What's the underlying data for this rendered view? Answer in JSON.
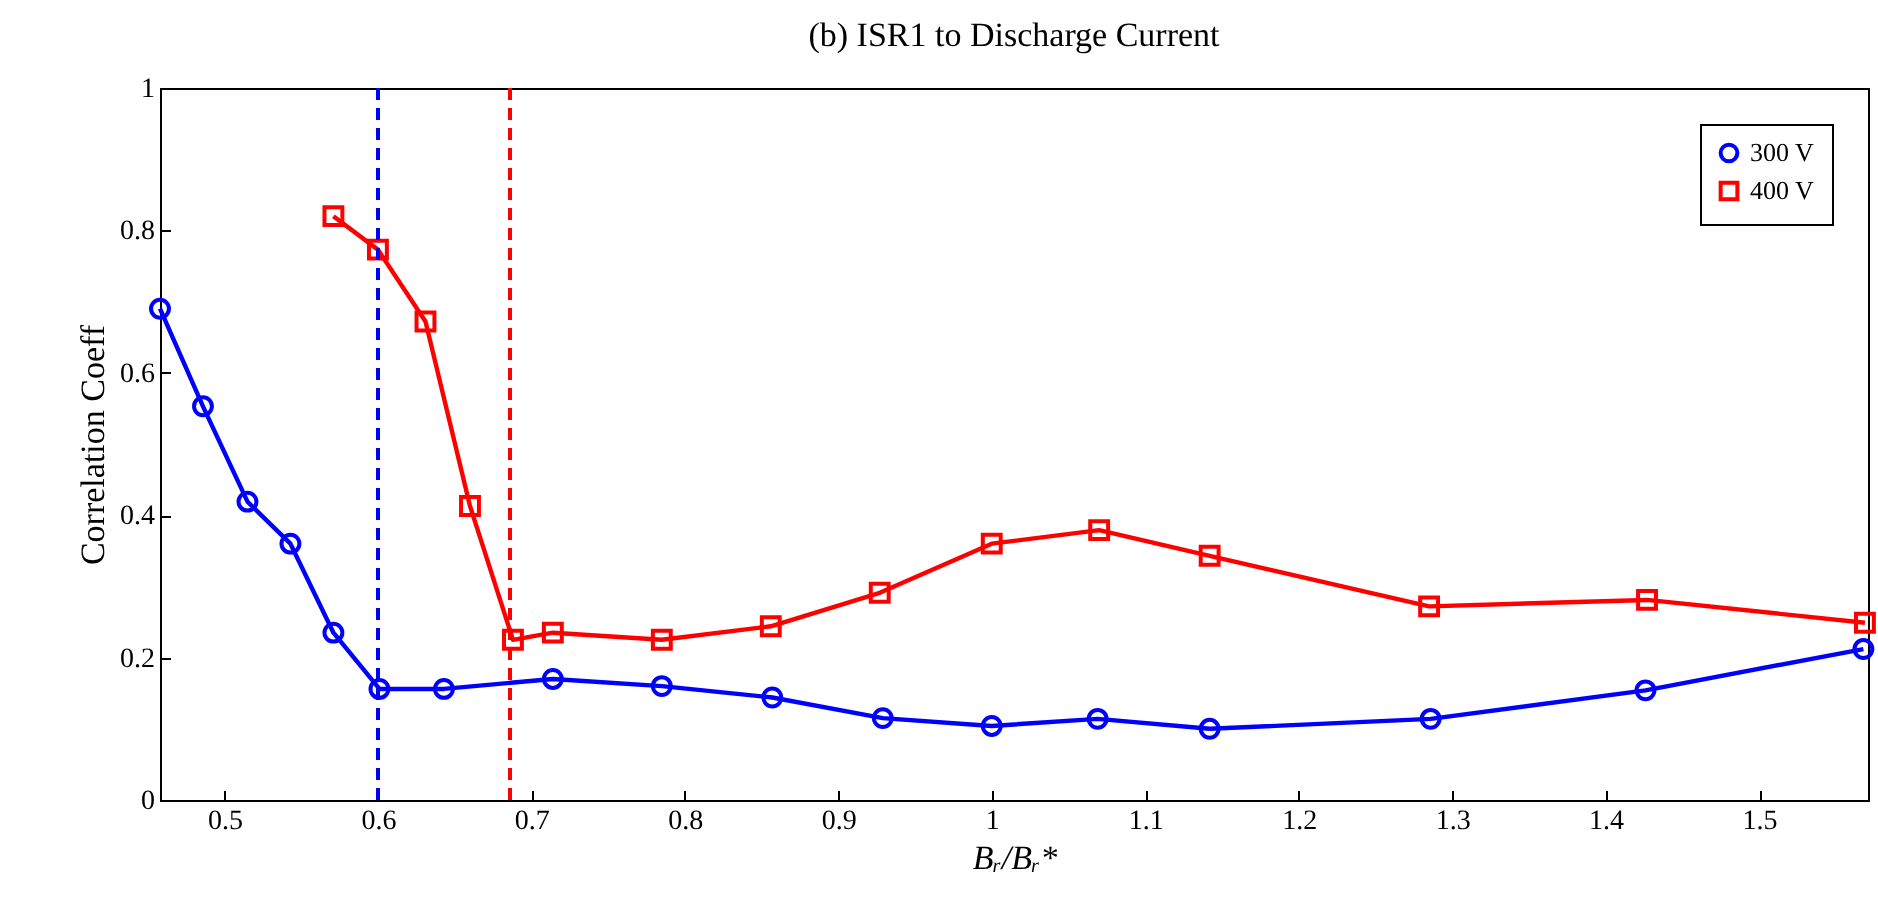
{
  "chart_data": {
    "type": "line",
    "title": "(b) ISR1 to Discharge Current",
    "xlabel": "Bᵣ/Bᵣ*",
    "ylabel": "Correlation Coeff",
    "xlim": [
      0.458,
      1.571
    ],
    "xticks": [
      0.5,
      0.6,
      0.7,
      0.8,
      0.9,
      1,
      1.1,
      1.2,
      1.3,
      1.4,
      1.5
    ],
    "ylim": [
      0,
      1
    ],
    "yticks": [
      0,
      0.2,
      0.4,
      0.6,
      0.8,
      1
    ],
    "grid": false,
    "legend": "top right",
    "line_style": "solid",
    "series": [
      {
        "name": "300 V",
        "color": "#0000ff",
        "marker": "circle",
        "x": [
          0.458,
          0.486,
          0.515,
          0.543,
          0.571,
          0.601,
          0.643,
          0.714,
          0.785,
          0.857,
          0.929,
          1.0,
          1.069,
          1.142,
          1.286,
          1.426,
          1.568
        ],
        "values": [
          0.69,
          0.553,
          0.419,
          0.36,
          0.235,
          0.156,
          0.156,
          0.17,
          0.16,
          0.144,
          0.115,
          0.104,
          0.114,
          0.1,
          0.114,
          0.154,
          0.212
        ]
      },
      {
        "name": "400 V",
        "color": "#ff0000",
        "marker": "square",
        "x": [
          0.571,
          0.6,
          0.631,
          0.66,
          0.688,
          0.714,
          0.785,
          0.856,
          0.927,
          1.0,
          1.07,
          1.142,
          1.285,
          1.427,
          1.569
        ],
        "values": [
          0.82,
          0.773,
          0.672,
          0.413,
          0.225,
          0.235,
          0.225,
          0.244,
          0.291,
          0.36,
          0.379,
          0.343,
          0.272,
          0.281,
          0.249
        ]
      }
    ],
    "ref_lines": [
      {
        "axis": "x",
        "value": 0.6,
        "color": "#0000ff",
        "line_style": "dashed"
      },
      {
        "axis": "x",
        "value": 0.686,
        "color": "#ff0000",
        "line_style": "dashed"
      }
    ]
  }
}
